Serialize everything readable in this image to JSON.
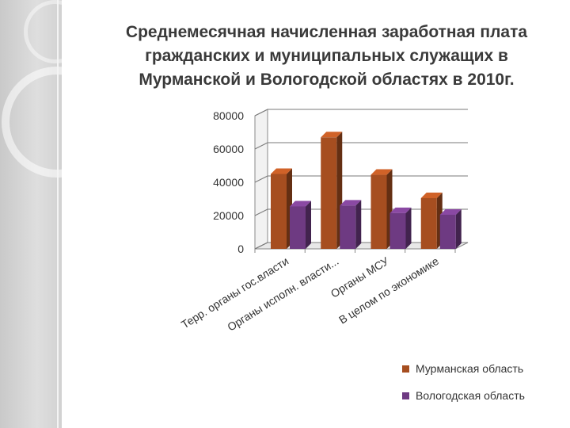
{
  "title": "Среднемесячная начисленная заработная плата гражданских и муниципальных служащих в Мурманской и Вологодской областях в 2010г.",
  "colors": {
    "murmansk": "#a64e20",
    "vologda": "#6e3a82"
  },
  "chart_data": {
    "type": "bar",
    "title": "Среднемесячная начисленная заработная плата гражданских и муниципальных служащих в Мурманской и Вологодской областях в 2010г.",
    "categories": [
      "Терр. органы гос.власти",
      "Органы исполн. власти...",
      "Органы МСУ",
      "В целом по экономике"
    ],
    "series": [
      {
        "name": "Мурманская область",
        "values": [
          45000,
          67000,
          44500,
          30500
        ]
      },
      {
        "name": "Вологодская область",
        "values": [
          25500,
          26000,
          21500,
          20500
        ]
      }
    ],
    "yticks": [
      "0",
      "20000",
      "40000",
      "60000",
      "80000"
    ],
    "ylim": [
      0,
      80000
    ],
    "grid": true,
    "legend": "bottom-right"
  }
}
